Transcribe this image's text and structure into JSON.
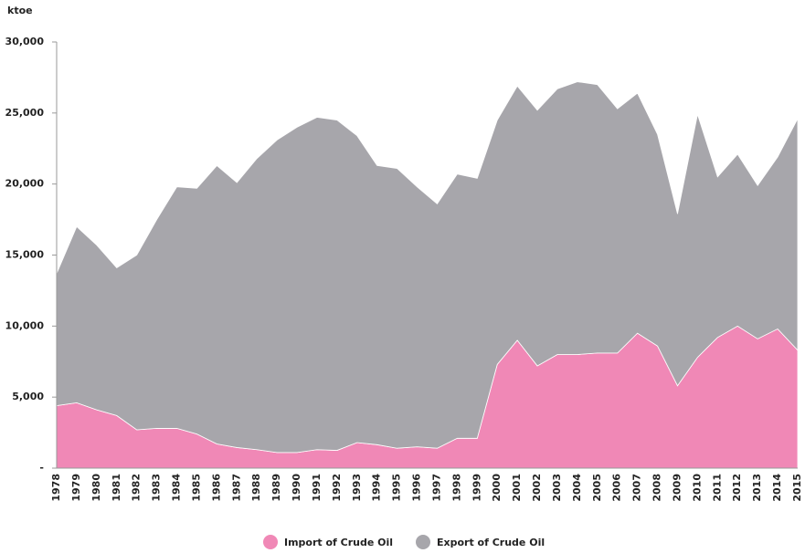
{
  "chart_data": {
    "type": "stacked_area",
    "y_label": "ktoe",
    "categories": [
      "1978",
      "1979",
      "1980",
      "1981",
      "1982",
      "1983",
      "1984",
      "1985",
      "1986",
      "1987",
      "1988",
      "1989",
      "1990",
      "1991",
      "1992",
      "1993",
      "1994",
      "1995",
      "1996",
      "1997",
      "1998",
      "1999",
      "2000",
      "2001",
      "2002",
      "2003",
      "2004",
      "2005",
      "2006",
      "2007",
      "2008",
      "2009",
      "2010",
      "2011",
      "2012",
      "2013",
      "2014",
      "2015"
    ],
    "series": [
      {
        "name": "Import of Crude Oil",
        "color": "#f088b6",
        "values": [
          4400,
          4600,
          4100,
          3700,
          2700,
          2800,
          2800,
          2400,
          1700,
          1450,
          1300,
          1100,
          1100,
          1300,
          1250,
          1800,
          1650,
          1400,
          1500,
          1400,
          2100,
          2100,
          7300,
          9000,
          7200,
          8000,
          8000,
          8100,
          8100,
          9500,
          8600,
          5800,
          7800,
          9200,
          10000,
          9100,
          9800,
          8300
        ]
      },
      {
        "name": "Export of Crude Oil",
        "color": "#a7a6ab",
        "values": [
          9300,
          12400,
          11600,
          10400,
          12300,
          14700,
          17000,
          17300,
          19600,
          18650,
          20500,
          22000,
          22900,
          23400,
          23250,
          21600,
          19650,
          19700,
          18300,
          17200,
          18600,
          18300,
          17200,
          17900,
          18000,
          18700,
          19200,
          18900,
          17200,
          16900,
          14900,
          12100,
          17100,
          11300,
          12100,
          10800,
          12100,
          16300
        ]
      }
    ],
    "ylim": [
      0,
      30000
    ],
    "yticks": [
      {
        "value": 0,
        "label": "-"
      },
      {
        "value": 5000,
        "label": "5,000"
      },
      {
        "value": 10000,
        "label": "10,000"
      },
      {
        "value": 15000,
        "label": "15,000"
      },
      {
        "value": 20000,
        "label": "20,000"
      },
      {
        "value": 25000,
        "label": "25,000"
      },
      {
        "value": 30000,
        "label": "30,000"
      }
    ],
    "legend": "bottom"
  }
}
